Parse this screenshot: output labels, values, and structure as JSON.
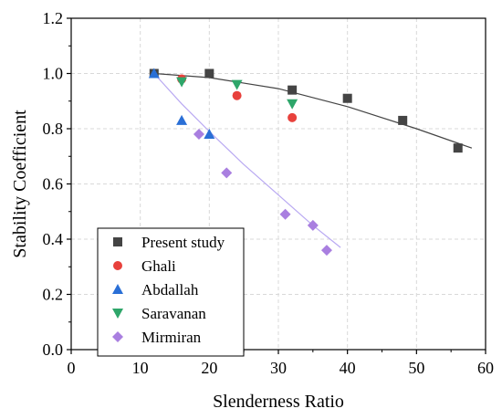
{
  "chart_data": {
    "type": "scatter",
    "xlabel": "Slenderness Ratio",
    "ylabel": "Stability Coefficient",
    "xlim": [
      0,
      60
    ],
    "ylim": [
      0,
      1.2
    ],
    "xticks": [
      0,
      10,
      20,
      30,
      40,
      50,
      60
    ],
    "yticks": [
      0.0,
      0.2,
      0.4,
      0.6,
      0.8,
      1.0,
      1.2
    ],
    "xtick_labels": [
      "0",
      "10",
      "20",
      "30",
      "40",
      "50",
      "60"
    ],
    "ytick_labels": [
      "0.0",
      "0.2",
      "0.4",
      "0.6",
      "0.8",
      "1.0",
      "1.2"
    ],
    "grid": true,
    "legend_position": "bottom-left",
    "series": [
      {
        "name": "Present study",
        "marker": "square",
        "color": "#444444",
        "x": [
          12,
          20,
          32,
          40,
          48,
          56
        ],
        "y": [
          1.0,
          1.0,
          0.94,
          0.91,
          0.83,
          0.73
        ]
      },
      {
        "name": "Ghali",
        "marker": "circle",
        "color": "#e8413c",
        "x": [
          16,
          24,
          32
        ],
        "y": [
          0.98,
          0.92,
          0.84
        ]
      },
      {
        "name": "Abdallah",
        "marker": "triangle-up",
        "color": "#2a6fd6",
        "x": [
          12,
          16,
          20
        ],
        "y": [
          1.0,
          0.83,
          0.78
        ]
      },
      {
        "name": "Saravanan",
        "marker": "triangle-down",
        "color": "#2ea66a",
        "x": [
          16,
          24,
          32
        ],
        "y": [
          0.97,
          0.96,
          0.89
        ]
      },
      {
        "name": "Mirmiran",
        "marker": "diamond",
        "color": "#a97fe0",
        "x": [
          18.5,
          22.5,
          31,
          35,
          37
        ],
        "y": [
          0.78,
          0.64,
          0.49,
          0.45,
          0.36
        ]
      }
    ],
    "fit_lines": [
      {
        "color": "#444444",
        "x": [
          12,
          20,
          30,
          40,
          50,
          58
        ],
        "y": [
          1.0,
          0.985,
          0.945,
          0.88,
          0.8,
          0.73
        ]
      },
      {
        "color": "#b9a9f2",
        "x": [
          12,
          16,
          20,
          25,
          30,
          35,
          39
        ],
        "y": [
          1.0,
          0.89,
          0.79,
          0.67,
          0.56,
          0.45,
          0.37
        ]
      }
    ]
  }
}
